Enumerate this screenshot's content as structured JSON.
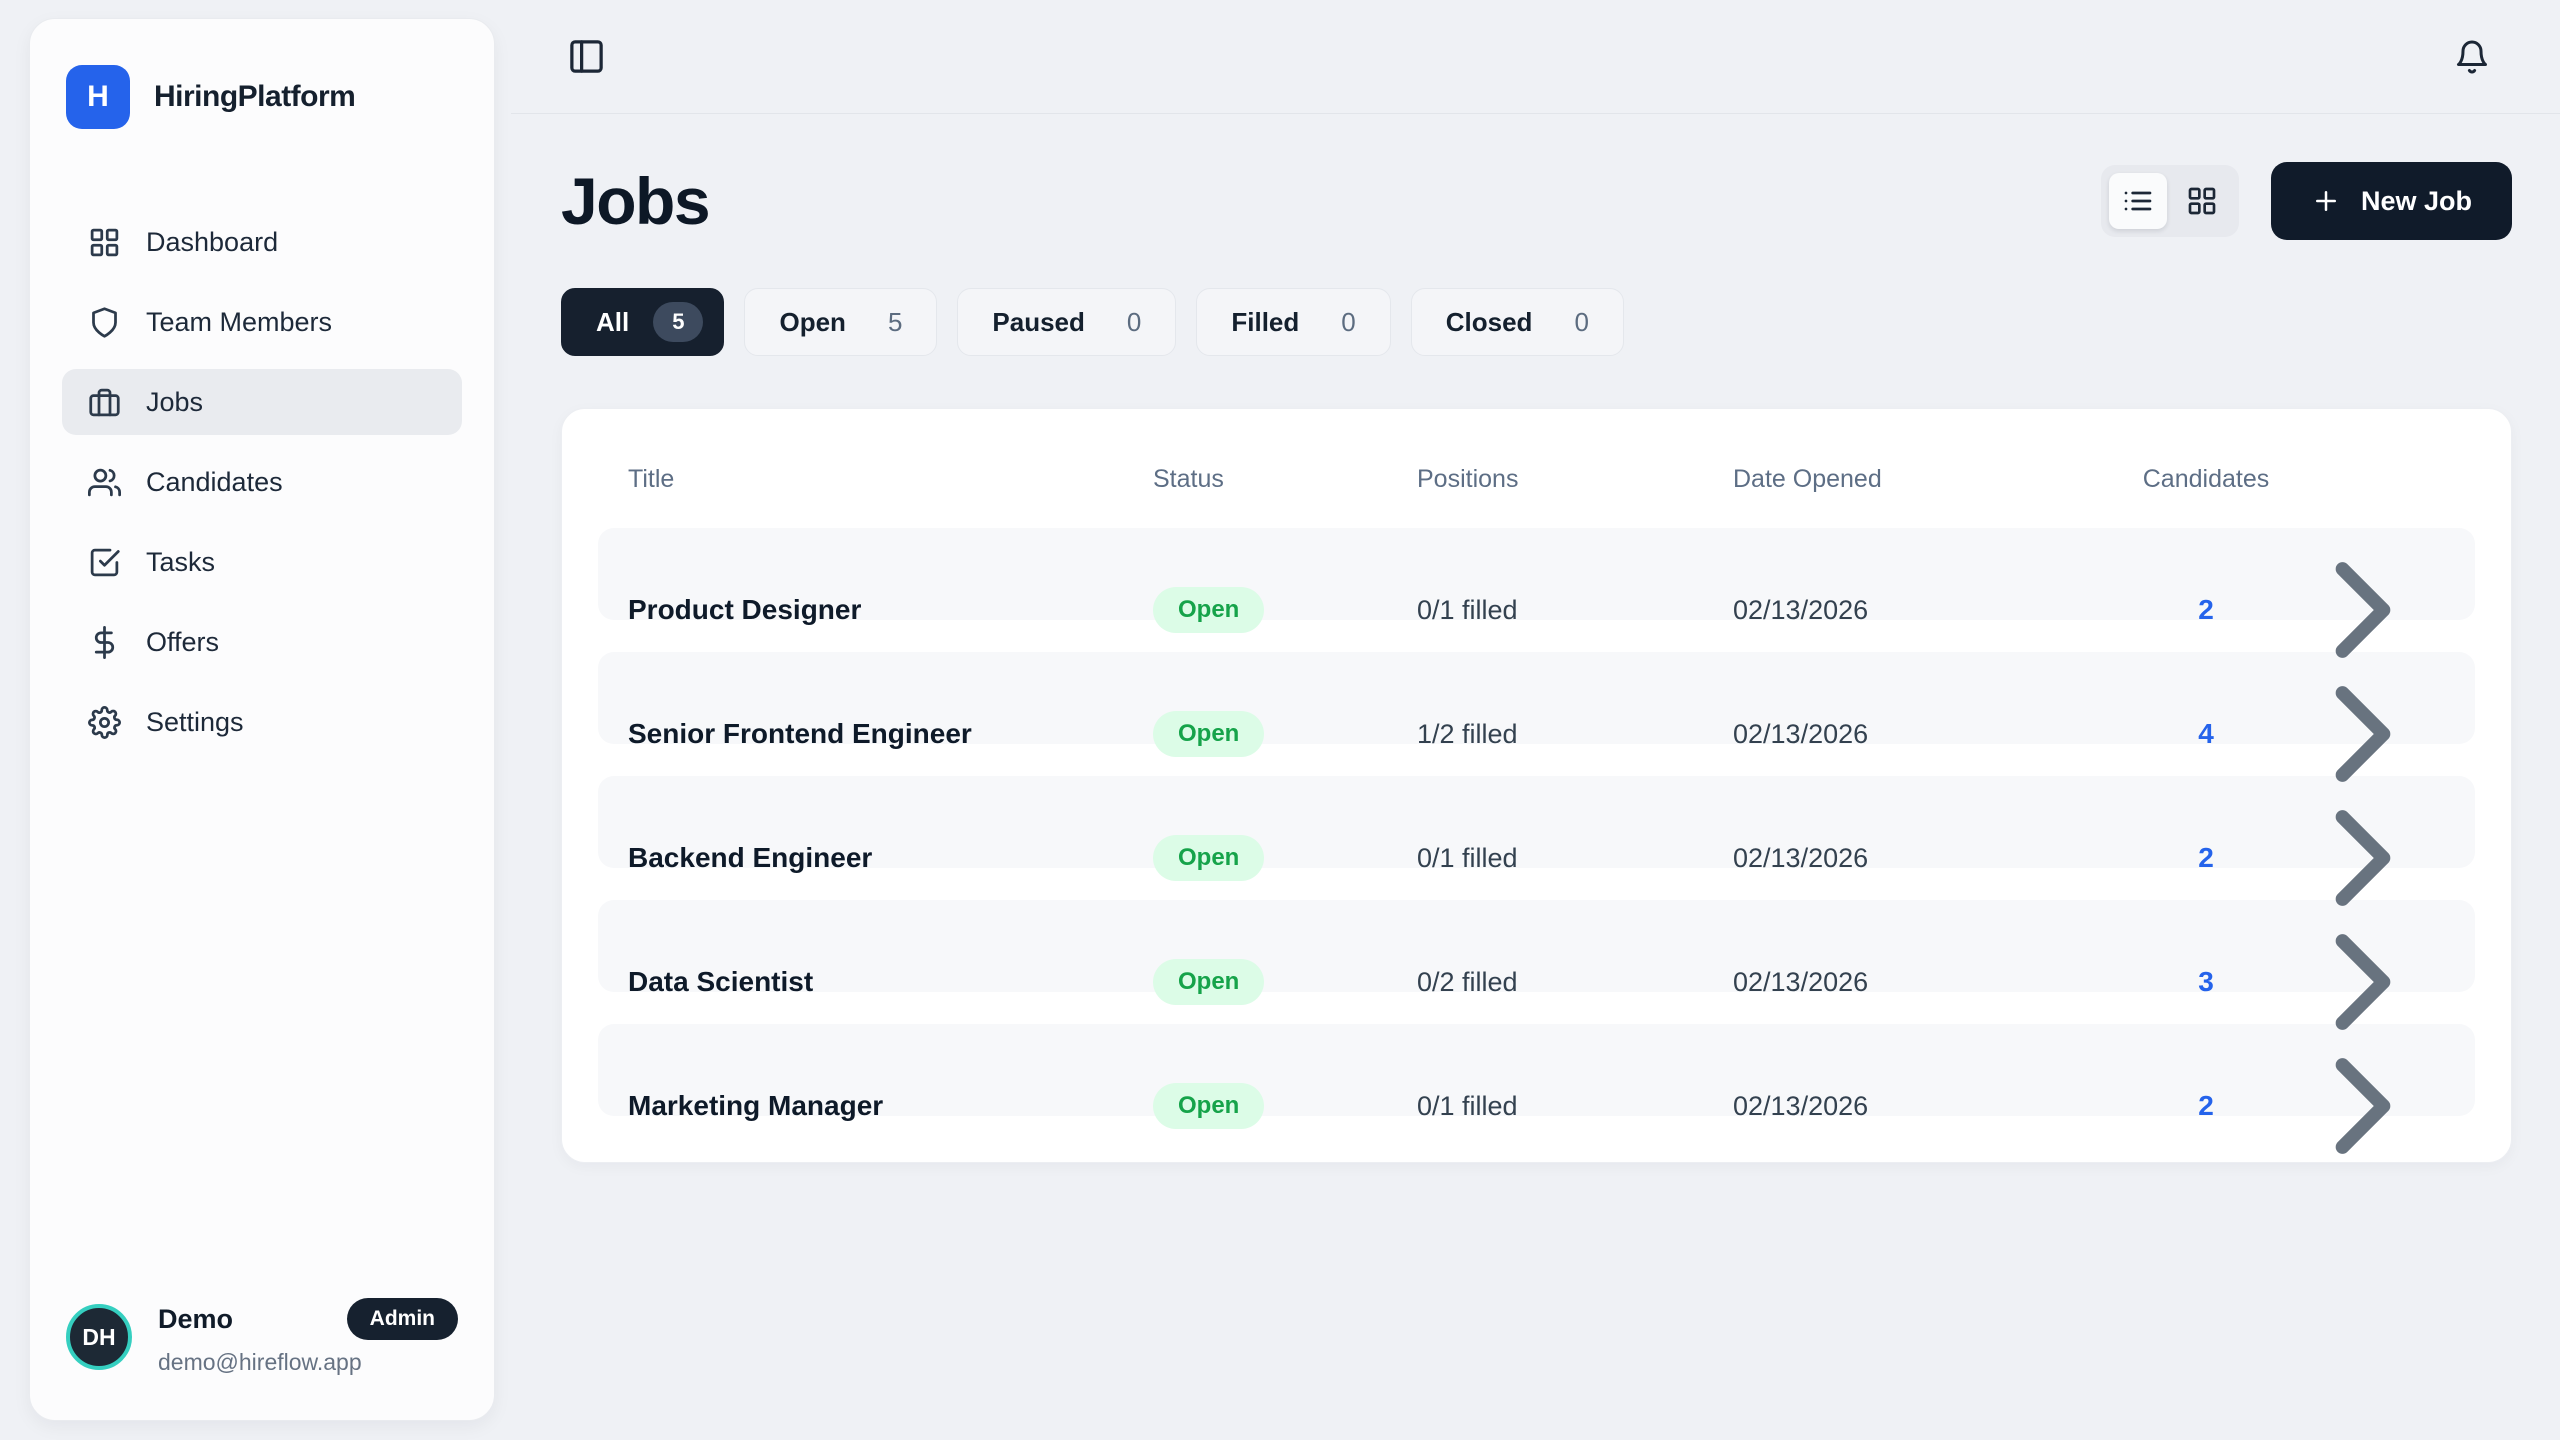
{
  "brand": {
    "logo_letter": "H",
    "name": "HiringPlatform"
  },
  "sidebar": {
    "items": [
      {
        "label": "Dashboard",
        "icon": "dashboard"
      },
      {
        "label": "Team Members",
        "icon": "shield"
      },
      {
        "label": "Jobs",
        "icon": "briefcase",
        "active": true
      },
      {
        "label": "Candidates",
        "icon": "users"
      },
      {
        "label": "Tasks",
        "icon": "check-square"
      },
      {
        "label": "Offers",
        "icon": "dollar"
      },
      {
        "label": "Settings",
        "icon": "gear"
      }
    ],
    "user": {
      "initials": "DH",
      "name": "Demo",
      "role_badge": "Admin",
      "email": "demo@hireflow.app"
    }
  },
  "header": {
    "title": "Jobs",
    "new_job_label": "New Job"
  },
  "filters": [
    {
      "label": "All",
      "count": "5",
      "active": true
    },
    {
      "label": "Open",
      "count": "5"
    },
    {
      "label": "Paused",
      "count": "0"
    },
    {
      "label": "Filled",
      "count": "0"
    },
    {
      "label": "Closed",
      "count": "0"
    }
  ],
  "table": {
    "columns": [
      "Title",
      "Status",
      "Positions",
      "Date Opened",
      "Candidates"
    ],
    "rows": [
      {
        "title": "Product Designer",
        "status": "Open",
        "positions": "0/1 filled",
        "date_opened": "02/13/2026",
        "candidates": "2"
      },
      {
        "title": "Senior Frontend Engineer",
        "status": "Open",
        "positions": "1/2 filled",
        "date_opened": "02/13/2026",
        "candidates": "4"
      },
      {
        "title": "Backend Engineer",
        "status": "Open",
        "positions": "0/1 filled",
        "date_opened": "02/13/2026",
        "candidates": "2"
      },
      {
        "title": "Data Scientist",
        "status": "Open",
        "positions": "0/2 filled",
        "date_opened": "02/13/2026",
        "candidates": "3"
      },
      {
        "title": "Marketing Manager",
        "status": "Open",
        "positions": "0/1 filled",
        "date_opened": "02/13/2026",
        "candidates": "2"
      }
    ]
  }
}
